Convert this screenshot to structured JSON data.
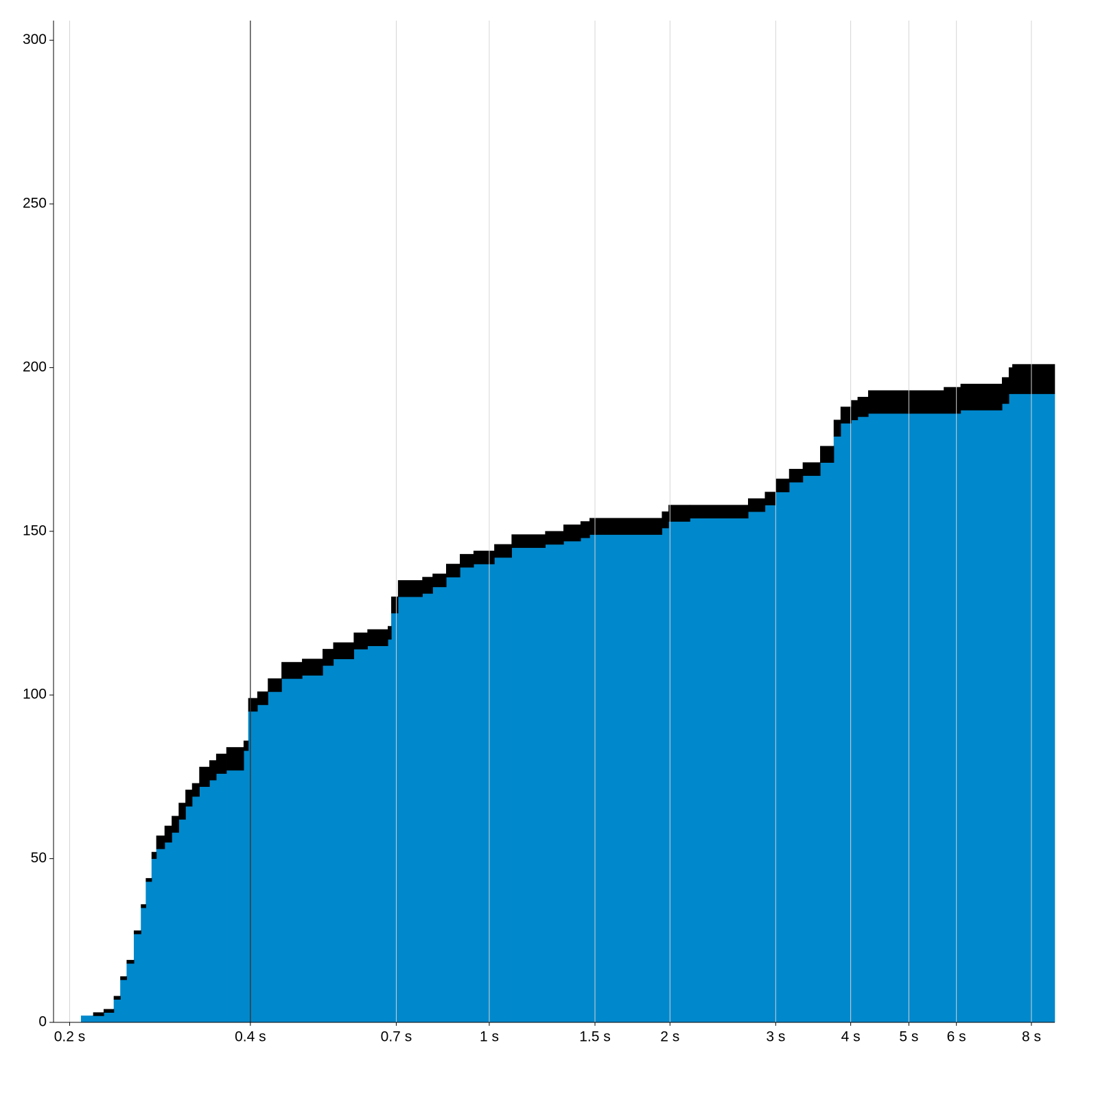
{
  "chart_data": {
    "type": "step-area",
    "x": [
      0.209,
      0.219,
      0.228,
      0.237,
      0.243,
      0.249,
      0.256,
      0.263,
      0.268,
      0.274,
      0.279,
      0.288,
      0.296,
      0.304,
      0.312,
      0.32,
      0.329,
      0.342,
      0.351,
      0.365,
      0.39,
      0.397,
      0.411,
      0.428,
      0.451,
      0.488,
      0.528,
      0.55,
      0.595,
      0.627,
      0.678,
      0.687,
      0.705,
      0.774,
      0.805,
      0.848,
      0.894,
      0.942,
      1.02,
      1.09,
      1.24,
      1.33,
      1.42,
      1.47,
      1.94,
      1.99,
      2.16,
      2.7,
      2.88,
      3.0,
      3.16,
      3.33,
      3.56,
      3.75,
      3.85,
      4.01,
      4.11,
      4.28,
      5.72,
      6.1,
      7.15,
      7.34,
      7.44
    ],
    "series": [
      {
        "color": "#0088cc",
        "values": [
          2,
          2,
          3,
          7,
          13,
          18,
          27,
          35,
          43,
          50,
          53,
          55,
          58,
          62,
          66,
          69,
          72,
          74,
          76,
          77,
          83,
          95,
          97,
          101,
          105,
          106,
          109,
          111,
          114,
          115,
          117,
          125,
          130,
          131,
          133,
          136,
          139,
          140,
          142,
          145,
          146,
          147,
          148,
          149,
          151,
          153,
          154,
          156,
          158,
          162,
          165,
          167,
          171,
          179,
          183,
          184,
          185,
          186,
          186,
          187,
          189,
          192,
          192
        ]
      },
      {
        "color": "#000000",
        "values": [
          0,
          1,
          1,
          1,
          1,
          1,
          1,
          1,
          1,
          2,
          4,
          5,
          5,
          5,
          5,
          4,
          6,
          6,
          6,
          7,
          3,
          4,
          4,
          4,
          5,
          5,
          5,
          5,
          5,
          5,
          4,
          5,
          5,
          5,
          4,
          4,
          4,
          4,
          4,
          4,
          4,
          5,
          5,
          5,
          5,
          5,
          4,
          4,
          4,
          4,
          4,
          4,
          5,
          5,
          5,
          6,
          6,
          7,
          8,
          8,
          8,
          8,
          9
        ]
      }
    ],
    "xscale": "log",
    "xlim": [
      0.188,
      8.75
    ],
    "xticks": [
      {
        "value": 0.2,
        "label": "0.2 s"
      },
      {
        "value": 0.4,
        "label": "0.4 s"
      },
      {
        "value": 0.7,
        "label": "0.7 s"
      },
      {
        "value": 1,
        "label": "1 s"
      },
      {
        "value": 1.5,
        "label": "1.5 s"
      },
      {
        "value": 2,
        "label": "2 s"
      },
      {
        "value": 3,
        "label": "3 s"
      },
      {
        "value": 4,
        "label": "4 s"
      },
      {
        "value": 5,
        "label": "5 s"
      },
      {
        "value": 6,
        "label": "6 s"
      },
      {
        "value": 8,
        "label": "8 s"
      }
    ],
    "ylim": [
      0,
      306
    ],
    "yticks": [
      0,
      50,
      100,
      150,
      200,
      250,
      300
    ],
    "grid": true,
    "vline": 0.4
  }
}
